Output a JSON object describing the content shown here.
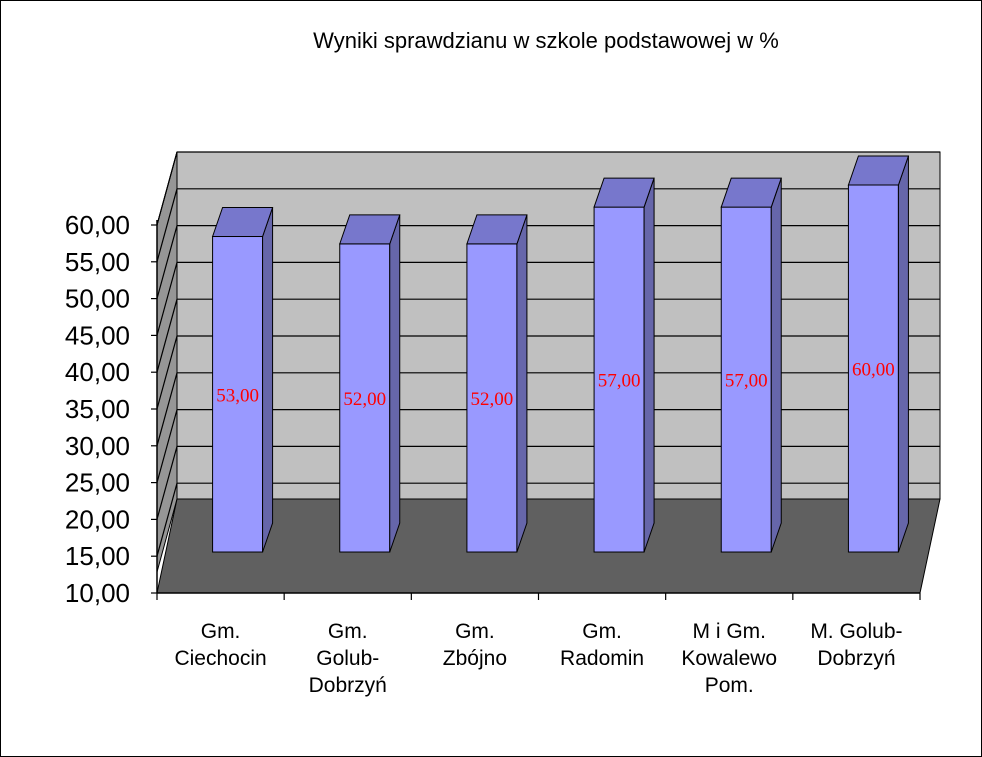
{
  "chart_data": {
    "type": "bar",
    "title": "Wyniki sprawdzianu w szkole podstawowej w %",
    "categories": [
      [
        "Gm.",
        "Ciechocin"
      ],
      [
        "Gm.",
        "Golub-",
        "Dobrzyń"
      ],
      [
        "Gm.",
        "Zbójno"
      ],
      [
        "Gm.",
        "Radomin"
      ],
      [
        "M i Gm.",
        "Kowalewo",
        "Pom."
      ],
      [
        "M. Golub-",
        "Dobrzyń"
      ]
    ],
    "values": [
      53,
      52,
      52,
      57,
      57,
      60
    ],
    "data_labels": [
      "53,00",
      "52,00",
      "52,00",
      "57,00",
      "57,00",
      "60,00"
    ],
    "ylim": [
      10,
      60
    ],
    "yticks": [
      "10,00",
      "15,00",
      "20,00",
      "25,00",
      "30,00",
      "35,00",
      "40,00",
      "45,00",
      "50,00",
      "55,00",
      "60,00"
    ],
    "grid": true,
    "style": "3d-column",
    "colors": {
      "bar_front": "#9999ff",
      "bar_top": "#7777cc",
      "bar_side": "#6666aa",
      "wall": "#c0c0c0",
      "floor": "#606060",
      "side_wall": "#969696",
      "data_label": "#ff0000"
    }
  }
}
